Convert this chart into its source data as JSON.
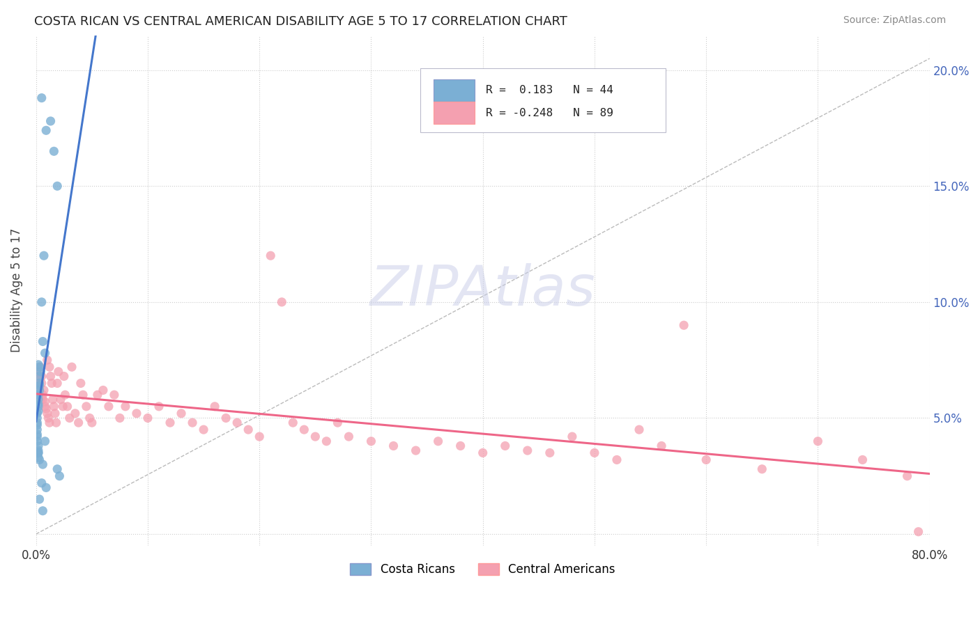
{
  "title": "COSTA RICAN VS CENTRAL AMERICAN DISABILITY AGE 5 TO 17 CORRELATION CHART",
  "source": "Source: ZipAtlas.com",
  "ylabel": "Disability Age 5 to 17",
  "xlim": [
    0.0,
    0.8
  ],
  "ylim": [
    -0.005,
    0.215
  ],
  "blue_color": "#7BAFD4",
  "pink_color": "#F4A0B0",
  "blue_line_color": "#4477CC",
  "pink_line_color": "#EE6688",
  "costa_rican_x": [
    0.005,
    0.009,
    0.013,
    0.016,
    0.019,
    0.007,
    0.005,
    0.006,
    0.008,
    0.002,
    0.003,
    0.004,
    0.003,
    0.003,
    0.003,
    0.003,
    0.002,
    0.002,
    0.002,
    0.002,
    0.002,
    0.001,
    0.001,
    0.001,
    0.001,
    0.001,
    0.001,
    0.001,
    0.001,
    0.002,
    0.002,
    0.002,
    0.002,
    0.003,
    0.006,
    0.019,
    0.021,
    0.005,
    0.009,
    0.006,
    0.008,
    0.002,
    0.003,
    0.001
  ],
  "costa_rican_y": [
    0.188,
    0.174,
    0.178,
    0.165,
    0.15,
    0.12,
    0.1,
    0.083,
    0.078,
    0.073,
    0.072,
    0.07,
    0.068,
    0.065,
    0.064,
    0.062,
    0.06,
    0.058,
    0.056,
    0.055,
    0.053,
    0.052,
    0.05,
    0.048,
    0.047,
    0.045,
    0.043,
    0.042,
    0.04,
    0.038,
    0.036,
    0.035,
    0.033,
    0.032,
    0.03,
    0.028,
    0.025,
    0.022,
    0.02,
    0.01,
    0.04,
    0.035,
    0.015,
    0.06
  ],
  "central_american_x": [
    0.001,
    0.002,
    0.002,
    0.003,
    0.003,
    0.004,
    0.004,
    0.005,
    0.005,
    0.006,
    0.006,
    0.007,
    0.008,
    0.008,
    0.009,
    0.01,
    0.01,
    0.011,
    0.012,
    0.012,
    0.013,
    0.014,
    0.015,
    0.016,
    0.017,
    0.018,
    0.019,
    0.02,
    0.022,
    0.024,
    0.025,
    0.026,
    0.028,
    0.03,
    0.032,
    0.035,
    0.038,
    0.04,
    0.042,
    0.045,
    0.048,
    0.05,
    0.055,
    0.06,
    0.065,
    0.07,
    0.075,
    0.08,
    0.09,
    0.1,
    0.11,
    0.12,
    0.13,
    0.14,
    0.15,
    0.16,
    0.17,
    0.18,
    0.19,
    0.2,
    0.21,
    0.22,
    0.23,
    0.24,
    0.25,
    0.26,
    0.27,
    0.28,
    0.3,
    0.32,
    0.34,
    0.36,
    0.38,
    0.4,
    0.42,
    0.44,
    0.46,
    0.48,
    0.5,
    0.52,
    0.54,
    0.56,
    0.58,
    0.6,
    0.65,
    0.7,
    0.74,
    0.78,
    0.79
  ],
  "central_american_y": [
    0.07,
    0.065,
    0.068,
    0.063,
    0.06,
    0.058,
    0.072,
    0.068,
    0.065,
    0.06,
    0.058,
    0.062,
    0.057,
    0.055,
    0.054,
    0.052,
    0.075,
    0.05,
    0.048,
    0.072,
    0.068,
    0.065,
    0.058,
    0.055,
    0.052,
    0.048,
    0.065,
    0.07,
    0.058,
    0.055,
    0.068,
    0.06,
    0.055,
    0.05,
    0.072,
    0.052,
    0.048,
    0.065,
    0.06,
    0.055,
    0.05,
    0.048,
    0.06,
    0.062,
    0.055,
    0.06,
    0.05,
    0.055,
    0.052,
    0.05,
    0.055,
    0.048,
    0.052,
    0.048,
    0.045,
    0.055,
    0.05,
    0.048,
    0.045,
    0.042,
    0.12,
    0.1,
    0.048,
    0.045,
    0.042,
    0.04,
    0.048,
    0.042,
    0.04,
    0.038,
    0.036,
    0.04,
    0.038,
    0.035,
    0.038,
    0.036,
    0.035,
    0.042,
    0.035,
    0.032,
    0.045,
    0.038,
    0.09,
    0.032,
    0.028,
    0.04,
    0.032,
    0.025,
    0.001
  ],
  "legend_r1_color": "0.183",
  "legend_r1_n": "44",
  "legend_r2_color": "-0.248",
  "legend_r2_n": "89"
}
